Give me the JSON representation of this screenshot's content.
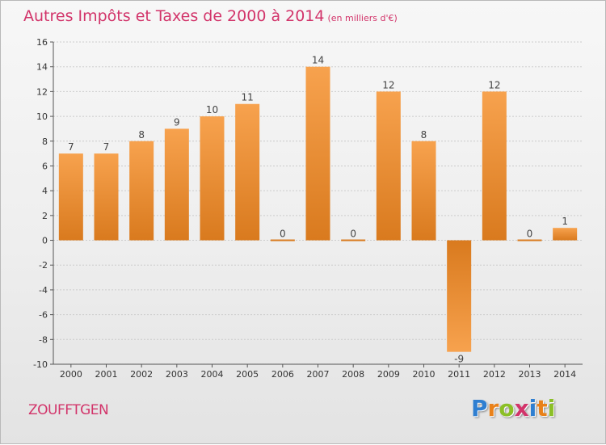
{
  "title": "Autres Impôts et Taxes de 2000 à 2014",
  "title_unit": "(en milliers d'€)",
  "commune": "ZOUFFTGEN",
  "logo": {
    "letters": [
      "P",
      "r",
      "o",
      "x",
      "i",
      "t",
      "i"
    ],
    "colors": [
      "#2f7fd1",
      "#e9811a",
      "#8bbf26",
      "#d2346a",
      "#2f7fd1",
      "#e9811a",
      "#8bbf26"
    ]
  },
  "colors": {
    "title": "#d2346a",
    "bar_light": "#f7a24e",
    "bar_dark": "#d97a1e",
    "grid": "#cccccc",
    "axis": "#555555"
  },
  "chart_data": {
    "type": "bar",
    "title": "Autres Impôts et Taxes de 2000 à 2014",
    "categories": [
      "2000",
      "2001",
      "2002",
      "2003",
      "2004",
      "2005",
      "2006",
      "2007",
      "2008",
      "2009",
      "2010",
      "2011",
      "2012",
      "2013",
      "2014"
    ],
    "values": [
      7,
      7,
      8,
      9,
      10,
      11,
      0,
      14,
      0,
      12,
      8,
      -9,
      12,
      0,
      1
    ],
    "value_labels": [
      "7",
      "7",
      "8",
      "9",
      "10",
      "11",
      "0",
      "14",
      "0",
      "12",
      "8",
      "-9",
      "12",
      "0",
      "1"
    ],
    "ylim": [
      -10,
      16
    ],
    "yticks": [
      16,
      14,
      12,
      10,
      8,
      6,
      4,
      2,
      0,
      -2,
      -4,
      -6,
      -8,
      -10
    ],
    "ytick_labels": [
      "16",
      "14",
      "12",
      "10",
      "8",
      "6",
      "4",
      "2",
      "0",
      "-2",
      "-4",
      "-6",
      "-8",
      "-10"
    ],
    "grid": true
  }
}
